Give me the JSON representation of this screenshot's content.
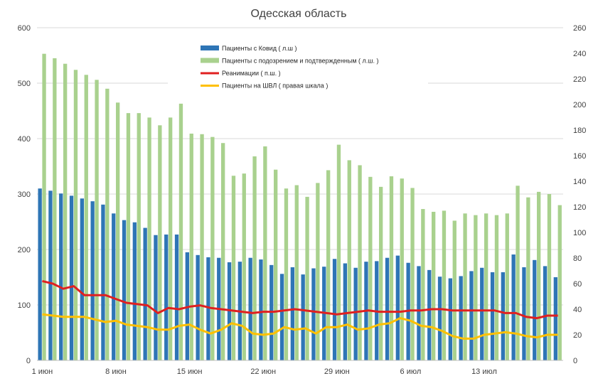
{
  "chart_data": {
    "type": "bar",
    "title": "Одесская область",
    "x": [
      "1 июн",
      "2 июн",
      "3 июн",
      "4 июн",
      "5 июн",
      "6 июн",
      "7 июн",
      "8 июн",
      "9 июн",
      "10 июн",
      "11 июн",
      "12 июн",
      "13 июн",
      "14 июн",
      "15 июн",
      "16 июн",
      "17 июн",
      "18 июн",
      "19 июн",
      "20 июн",
      "21 июн",
      "22 июн",
      "23 июн",
      "24 июн",
      "25 июн",
      "26 июн",
      "27 июн",
      "28 июн",
      "29 июн",
      "30 июн",
      "1 июл",
      "2 июл",
      "3 июл",
      "4 июл",
      "5 июл",
      "6 июл",
      "7 июл",
      "8 июл",
      "9 июл",
      "10 июл",
      "11 июл",
      "12 июл",
      "13 июл",
      "14 июл",
      "15 июл",
      "16 июл",
      "17 июл",
      "18 июл",
      "19 июл",
      "20 июл"
    ],
    "x_tick_labels": [
      "1 июн",
      "8 июн",
      "15 июн",
      "22 июн",
      "29 июн",
      "6 июл",
      "13 июл"
    ],
    "x_tick_indices": [
      0,
      7,
      14,
      21,
      28,
      35,
      42
    ],
    "y_left": {
      "min": 0,
      "max": 600,
      "ticks": [
        0,
        100,
        200,
        300,
        400,
        500,
        600
      ]
    },
    "y_right": {
      "min": 0,
      "max": 260,
      "ticks": [
        0,
        20,
        40,
        60,
        80,
        100,
        120,
        140,
        160,
        180,
        200,
        220,
        240,
        260
      ]
    },
    "gridlines": true,
    "legend_position": "top-center",
    "series": [
      {
        "name": "Пациенты с Ковид ( л.ш )",
        "type": "bar",
        "axis": "left",
        "color": "#2e75b6",
        "values": [
          310,
          306,
          301,
          297,
          292,
          287,
          281,
          265,
          253,
          249,
          239,
          226,
          227,
          227,
          195,
          190,
          186,
          185,
          177,
          178,
          185,
          182,
          172,
          156,
          168,
          155,
          166,
          169,
          183,
          175,
          167,
          178,
          179,
          185,
          189,
          176,
          170,
          163,
          151,
          148,
          152,
          161,
          167,
          159,
          159,
          191,
          168,
          181,
          170,
          150
        ]
      },
      {
        "name": "Пациенты с подозрением и подтвержденным ( л.ш. )",
        "type": "bar",
        "axis": "left",
        "color": "#a9d18e",
        "values": [
          553,
          545,
          535,
          524,
          515,
          506,
          490,
          465,
          446,
          446,
          438,
          424,
          438,
          463,
          409,
          408,
          403,
          392,
          333,
          337,
          368,
          386,
          344,
          310,
          316,
          295,
          320,
          343,
          389,
          361,
          352,
          331,
          313,
          332,
          328,
          311,
          273,
          268,
          270,
          252,
          265,
          262,
          265,
          262,
          265,
          315,
          294,
          304,
          300,
          280
        ]
      },
      {
        "name": "Реанимации ( п.ш. )",
        "type": "line",
        "axis": "right",
        "color": "#e02020",
        "values": [
          62,
          60,
          56,
          58,
          51,
          51,
          51,
          48,
          45,
          44,
          43,
          37,
          41,
          40,
          42,
          43,
          41,
          40,
          39,
          38,
          37,
          38,
          38,
          39,
          40,
          39,
          38,
          37,
          36,
          37,
          38,
          39,
          38,
          38,
          38,
          39,
          39,
          40,
          40,
          39,
          39,
          39,
          39,
          39,
          37,
          37,
          34,
          33,
          35,
          35
        ]
      },
      {
        "name": "Пациенты на ШВЛ ( правая шкала )",
        "type": "line",
        "axis": "right",
        "color": "#ffc000",
        "values": [
          36,
          35,
          34,
          34,
          34,
          32,
          30,
          31,
          28,
          27,
          26,
          24,
          24,
          27,
          28,
          24,
          21,
          24,
          29,
          27,
          21,
          20,
          21,
          26,
          24,
          25,
          21,
          26,
          26,
          28,
          24,
          25,
          28,
          29,
          33,
          31,
          27,
          26,
          23,
          19,
          17,
          17,
          20,
          21,
          22,
          21,
          19,
          18,
          20,
          20
        ]
      }
    ]
  }
}
